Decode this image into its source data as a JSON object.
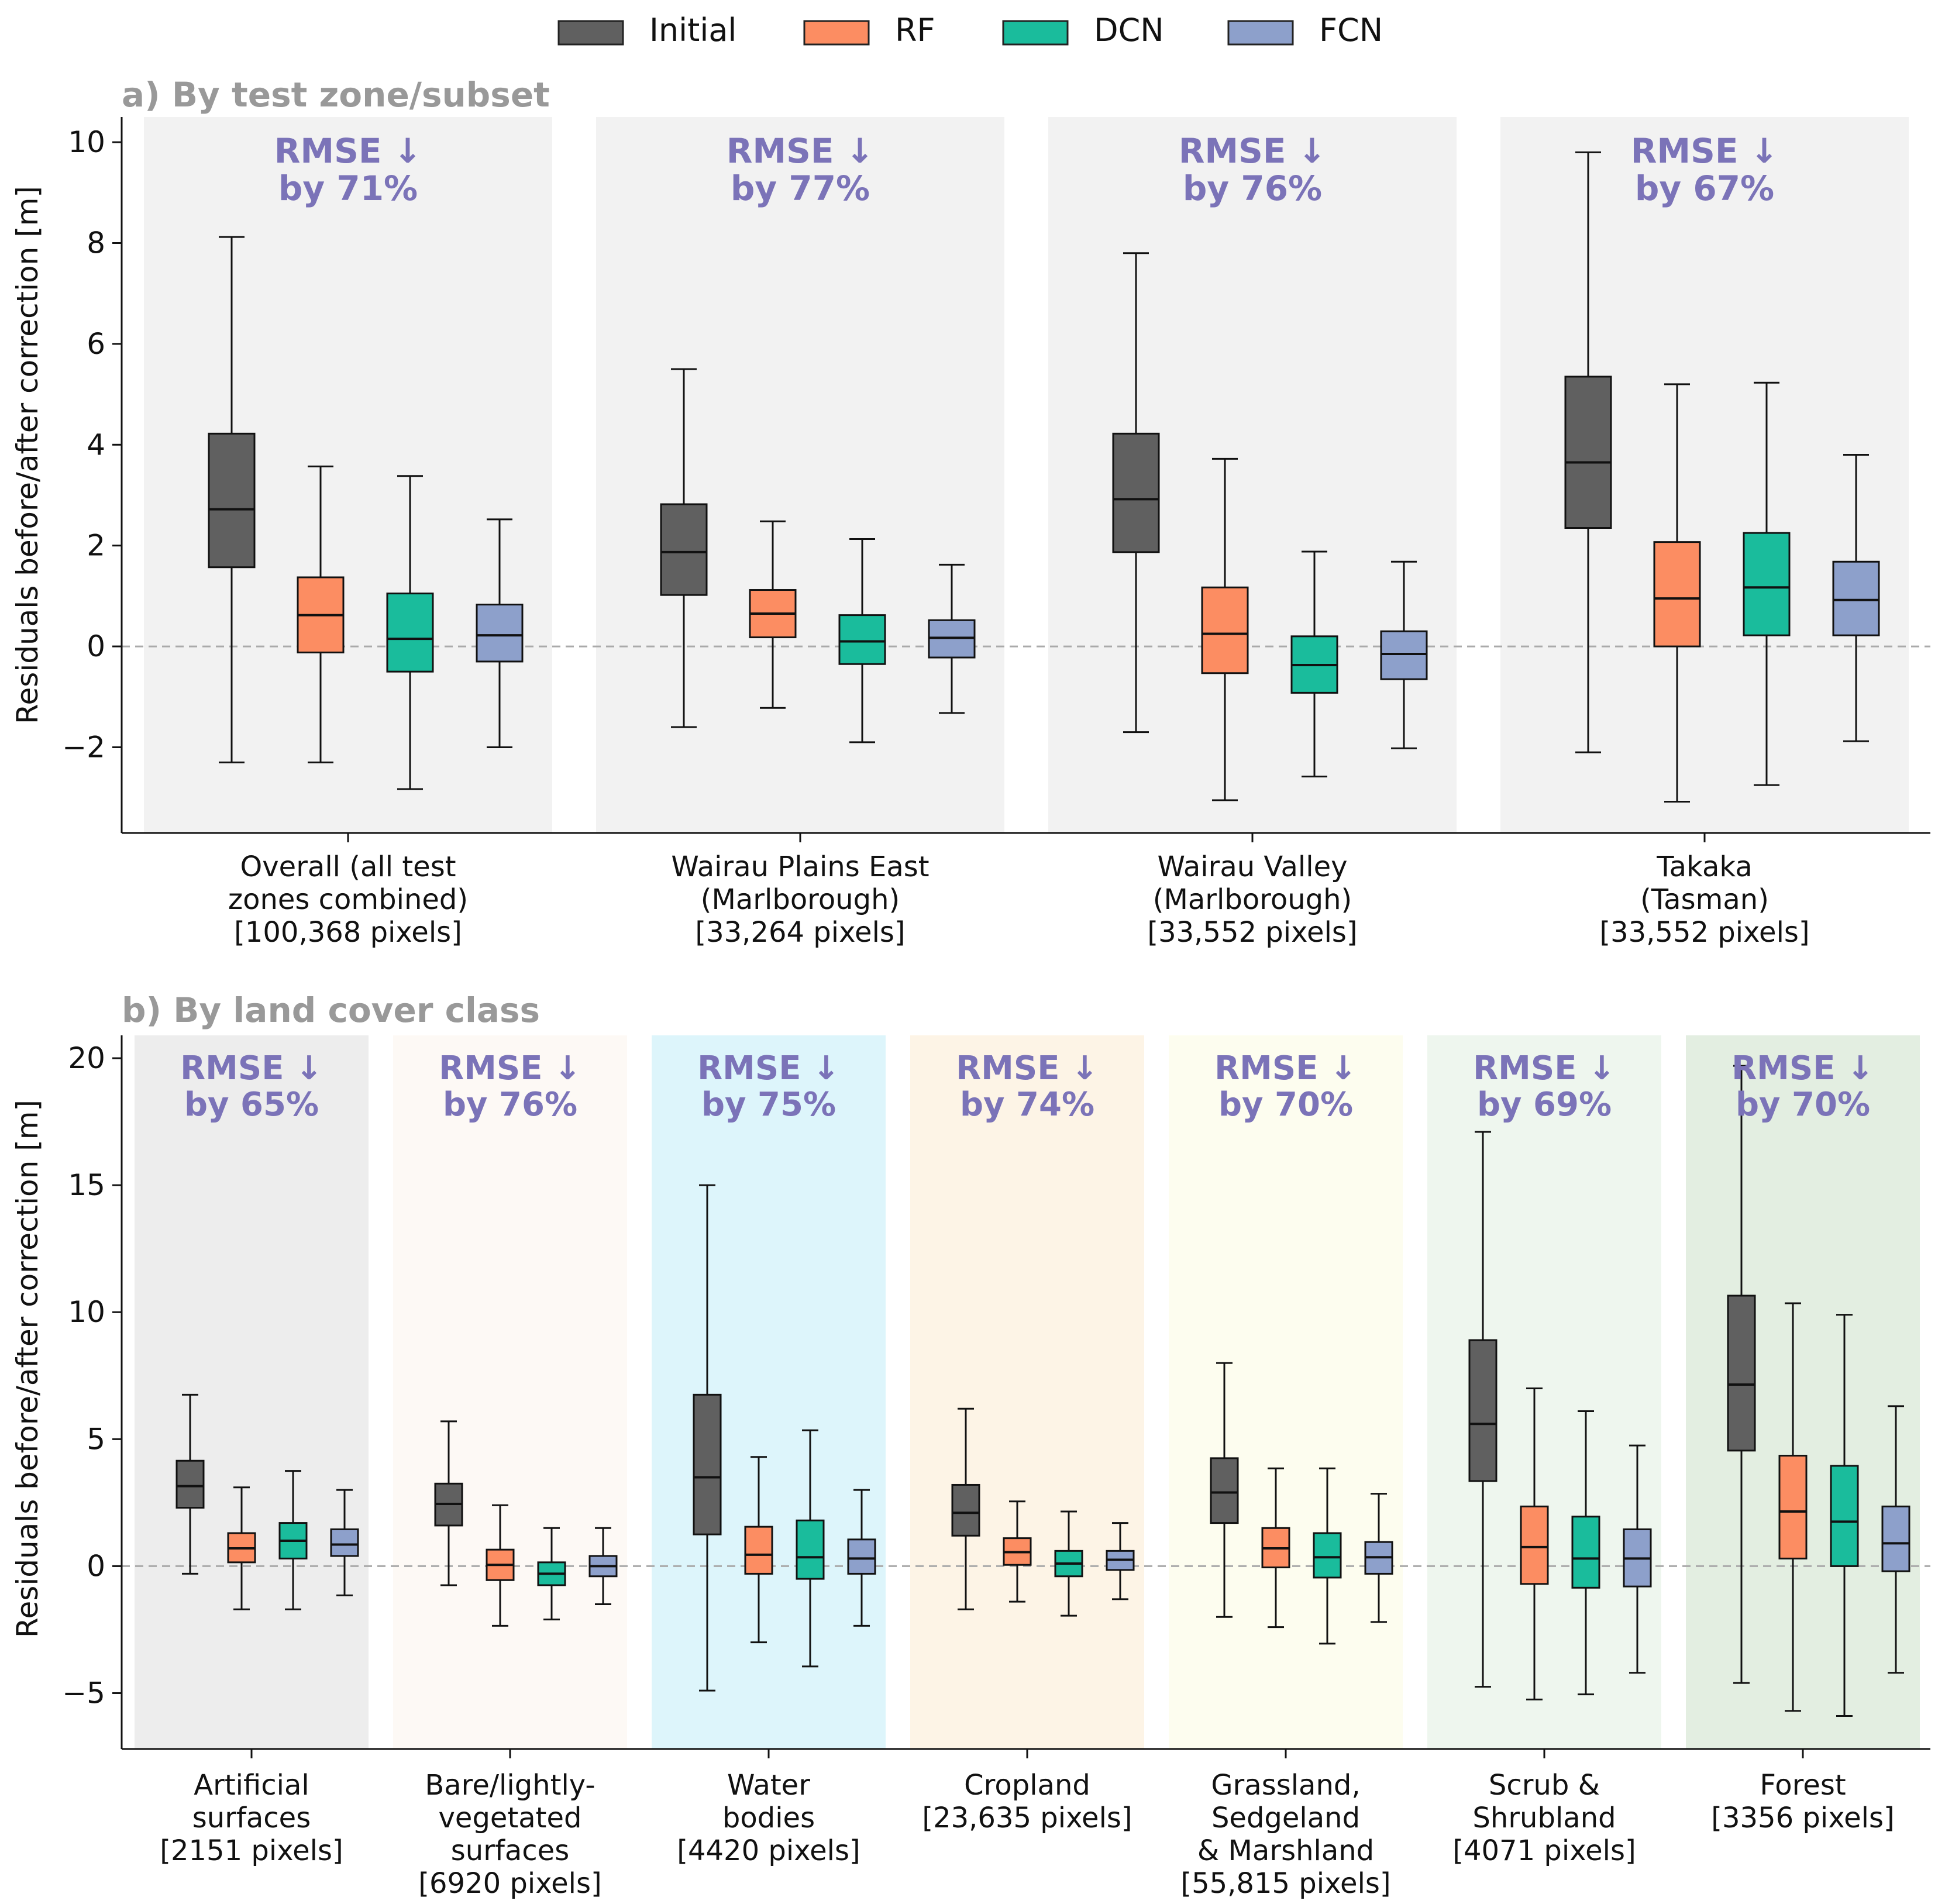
{
  "legend": {
    "items": [
      {
        "label": "Initial",
        "color": "#606060"
      },
      {
        "label": "RF",
        "color": "#FC8D62"
      },
      {
        "label": "DCN",
        "color": "#1ABC9C"
      },
      {
        "label": "FCN",
        "color": "#8DA0CB"
      }
    ]
  },
  "chart_data": [
    {
      "type": "box",
      "panel_title": "a) By test zone/subset",
      "ylabel": "Residuals before/after correction [m]",
      "ylim": [
        -3.7,
        10.5
      ],
      "yticks": [
        -2,
        0,
        2,
        4,
        6,
        8,
        10
      ],
      "ytick_labels": [
        "−2",
        "0",
        "2",
        "4",
        "6",
        "8",
        "10"
      ],
      "reference_line": 0,
      "groups": [
        {
          "label_lines": [
            "Overall (all test",
            "zones combined)",
            "[100,368 pixels]"
          ],
          "annotation_lines": [
            "RMSE ↓",
            "by 71%"
          ],
          "background": "#F2F2F2",
          "boxes": {
            "Initial": {
              "whislo": -2.3,
              "q1": 1.57,
              "med": 2.72,
              "q3": 4.22,
              "whishi": 8.12
            },
            "RF": {
              "whislo": -2.3,
              "q1": -0.12,
              "med": 0.62,
              "q3": 1.37,
              "whishi": 3.57
            },
            "DCN": {
              "whislo": -2.83,
              "q1": -0.5,
              "med": 0.15,
              "q3": 1.05,
              "whishi": 3.38
            },
            "FCN": {
              "whislo": -2.0,
              "q1": -0.3,
              "med": 0.22,
              "q3": 0.83,
              "whishi": 2.52
            }
          }
        },
        {
          "label_lines": [
            "Wairau Plains East",
            "(Marlborough)",
            "[33,264 pixels]"
          ],
          "annotation_lines": [
            "RMSE ↓",
            "by 77%"
          ],
          "background": "#F2F2F2",
          "boxes": {
            "Initial": {
              "whislo": -1.6,
              "q1": 1.02,
              "med": 1.87,
              "q3": 2.82,
              "whishi": 5.5
            },
            "RF": {
              "whislo": -1.22,
              "q1": 0.18,
              "med": 0.65,
              "q3": 1.12,
              "whishi": 2.48
            },
            "DCN": {
              "whislo": -1.9,
              "q1": -0.35,
              "med": 0.1,
              "q3": 0.62,
              "whishi": 2.13
            },
            "FCN": {
              "whislo": -1.32,
              "q1": -0.22,
              "med": 0.17,
              "q3": 0.52,
              "whishi": 1.62
            }
          }
        },
        {
          "label_lines": [
            "Wairau Valley",
            "(Marlborough)",
            "[33,552 pixels]"
          ],
          "annotation_lines": [
            "RMSE ↓",
            "by 76%"
          ],
          "background": "#F2F2F2",
          "boxes": {
            "Initial": {
              "whislo": -1.7,
              "q1": 1.87,
              "med": 2.92,
              "q3": 4.22,
              "whishi": 7.8
            },
            "RF": {
              "whislo": -3.05,
              "q1": -0.53,
              "med": 0.25,
              "q3": 1.17,
              "whishi": 3.72
            },
            "DCN": {
              "whislo": -2.58,
              "q1": -0.92,
              "med": -0.37,
              "q3": 0.2,
              "whishi": 1.88
            },
            "FCN": {
              "whislo": -2.02,
              "q1": -0.65,
              "med": -0.15,
              "q3": 0.3,
              "whishi": 1.68
            }
          }
        },
        {
          "label_lines": [
            "Takaka",
            "(Tasman)",
            "[33,552 pixels]"
          ],
          "annotation_lines": [
            "RMSE ↓",
            "by 67%"
          ],
          "background": "#F2F2F2",
          "boxes": {
            "Initial": {
              "whislo": -2.1,
              "q1": 2.35,
              "med": 3.65,
              "q3": 5.35,
              "whishi": 9.8
            },
            "RF": {
              "whislo": -3.08,
              "q1": 0.0,
              "med": 0.95,
              "q3": 2.07,
              "whishi": 5.2
            },
            "DCN": {
              "whislo": -2.75,
              "q1": 0.22,
              "med": 1.17,
              "q3": 2.25,
              "whishi": 5.23
            },
            "FCN": {
              "whislo": -1.88,
              "q1": 0.22,
              "med": 0.92,
              "q3": 1.68,
              "whishi": 3.8
            }
          }
        }
      ]
    },
    {
      "type": "box",
      "panel_title": "b) By land cover class",
      "ylabel": "Residuals before/after correction [m]",
      "ylim": [
        -7.2,
        20.9
      ],
      "yticks": [
        -5,
        0,
        5,
        10,
        15,
        20
      ],
      "ytick_labels": [
        "−5",
        "0",
        "5",
        "10",
        "15",
        "20"
      ],
      "reference_line": 0,
      "groups": [
        {
          "label_lines": [
            "Artificial",
            "surfaces",
            "[2151 pixels]"
          ],
          "annotation_lines": [
            "RMSE ↓",
            "by 65%"
          ],
          "background": "#EDEDED",
          "boxes": {
            "Initial": {
              "whislo": -0.3,
              "q1": 2.3,
              "med": 3.15,
              "q3": 4.15,
              "whishi": 6.75
            },
            "RF": {
              "whislo": -1.7,
              "q1": 0.15,
              "med": 0.7,
              "q3": 1.3,
              "whishi": 3.1
            },
            "DCN": {
              "whislo": -1.7,
              "q1": 0.3,
              "med": 1.0,
              "q3": 1.7,
              "whishi": 3.75
            },
            "FCN": {
              "whislo": -1.15,
              "q1": 0.4,
              "med": 0.85,
              "q3": 1.45,
              "whishi": 3.0
            }
          }
        },
        {
          "label_lines": [
            "Bare/lightly-",
            "vegetated",
            "surfaces",
            "[6920 pixels]"
          ],
          "annotation_lines": [
            "RMSE ↓",
            "by 76%"
          ],
          "background": "#FDF9F5",
          "boxes": {
            "Initial": {
              "whislo": -0.75,
              "q1": 1.6,
              "med": 2.45,
              "q3": 3.25,
              "whishi": 5.7
            },
            "RF": {
              "whislo": -2.35,
              "q1": -0.55,
              "med": 0.05,
              "q3": 0.65,
              "whishi": 2.4
            },
            "DCN": {
              "whislo": -2.1,
              "q1": -0.75,
              "med": -0.3,
              "q3": 0.15,
              "whishi": 1.5
            },
            "FCN": {
              "whislo": -1.5,
              "q1": -0.4,
              "med": 0.0,
              "q3": 0.4,
              "whishi": 1.5
            }
          }
        },
        {
          "label_lines": [
            "Water",
            "bodies",
            "[4420 pixels]"
          ],
          "annotation_lines": [
            "RMSE ↓",
            "by 75%"
          ],
          "background": "#DDF5FB",
          "boxes": {
            "Initial": {
              "whislo": -4.9,
              "q1": 1.25,
              "med": 3.5,
              "q3": 6.75,
              "whishi": 15.0
            },
            "RF": {
              "whislo": -3.0,
              "q1": -0.3,
              "med": 0.45,
              "q3": 1.55,
              "whishi": 4.3
            },
            "DCN": {
              "whislo": -3.95,
              "q1": -0.5,
              "med": 0.35,
              "q3": 1.8,
              "whishi": 5.35
            },
            "FCN": {
              "whislo": -2.35,
              "q1": -0.3,
              "med": 0.3,
              "q3": 1.05,
              "whishi": 3.0
            }
          }
        },
        {
          "label_lines": [
            "Cropland",
            "[23,635 pixels]"
          ],
          "annotation_lines": [
            "RMSE ↓",
            "by 74%"
          ],
          "background": "#FDF4E6",
          "boxes": {
            "Initial": {
              "whislo": -1.7,
              "q1": 1.2,
              "med": 2.1,
              "q3": 3.2,
              "whishi": 6.2
            },
            "RF": {
              "whislo": -1.4,
              "q1": 0.05,
              "med": 0.55,
              "q3": 1.1,
              "whishi": 2.55
            },
            "DCN": {
              "whislo": -1.95,
              "q1": -0.4,
              "med": 0.1,
              "q3": 0.6,
              "whishi": 2.15
            },
            "FCN": {
              "whislo": -1.3,
              "q1": -0.15,
              "med": 0.25,
              "q3": 0.6,
              "whishi": 1.7
            }
          }
        },
        {
          "label_lines": [
            "Grassland,",
            "Sedgeland",
            "& Marshland",
            "[55,815 pixels]"
          ],
          "annotation_lines": [
            "RMSE ↓",
            "by 70%"
          ],
          "background": "#FDFDEF",
          "boxes": {
            "Initial": {
              "whislo": -2.0,
              "q1": 1.7,
              "med": 2.9,
              "q3": 4.25,
              "whishi": 8.0
            },
            "RF": {
              "whislo": -2.4,
              "q1": -0.05,
              "med": 0.7,
              "q3": 1.5,
              "whishi": 3.85
            },
            "DCN": {
              "whislo": -3.05,
              "q1": -0.45,
              "med": 0.35,
              "q3": 1.3,
              "whishi": 3.85
            },
            "FCN": {
              "whislo": -2.2,
              "q1": -0.3,
              "med": 0.35,
              "q3": 0.95,
              "whishi": 2.85
            }
          }
        },
        {
          "label_lines": [
            "Scrub &",
            "Shrubland",
            "[4071 pixels]"
          ],
          "annotation_lines": [
            "RMSE ↓",
            "by 69%"
          ],
          "background": "#EEF6EE",
          "boxes": {
            "Initial": {
              "whislo": -4.75,
              "q1": 3.35,
              "med": 5.6,
              "q3": 8.9,
              "whishi": 17.1
            },
            "RF": {
              "whislo": -5.25,
              "q1": -0.7,
              "med": 0.75,
              "q3": 2.35,
              "whishi": 7.0
            },
            "DCN": {
              "whislo": -5.05,
              "q1": -0.85,
              "med": 0.3,
              "q3": 1.95,
              "whishi": 6.1
            },
            "FCN": {
              "whislo": -4.2,
              "q1": -0.8,
              "med": 0.3,
              "q3": 1.45,
              "whishi": 4.75
            }
          }
        },
        {
          "label_lines": [
            "Forest",
            "[3356 pixels]"
          ],
          "annotation_lines": [
            "RMSE ↓",
            "by 70%"
          ],
          "background": "#E3EEE1",
          "boxes": {
            "Initial": {
              "whislo": -4.6,
              "q1": 4.55,
              "med": 7.15,
              "q3": 10.65,
              "whishi": 19.7
            },
            "RF": {
              "whislo": -5.7,
              "q1": 0.3,
              "med": 2.15,
              "q3": 4.35,
              "whishi": 10.35
            },
            "DCN": {
              "whislo": -5.9,
              "q1": 0.0,
              "med": 1.75,
              "q3": 3.95,
              "whishi": 9.9
            },
            "FCN": {
              "whislo": -4.2,
              "q1": -0.2,
              "med": 0.9,
              "q3": 2.35,
              "whishi": 6.3
            }
          }
        }
      ]
    }
  ]
}
